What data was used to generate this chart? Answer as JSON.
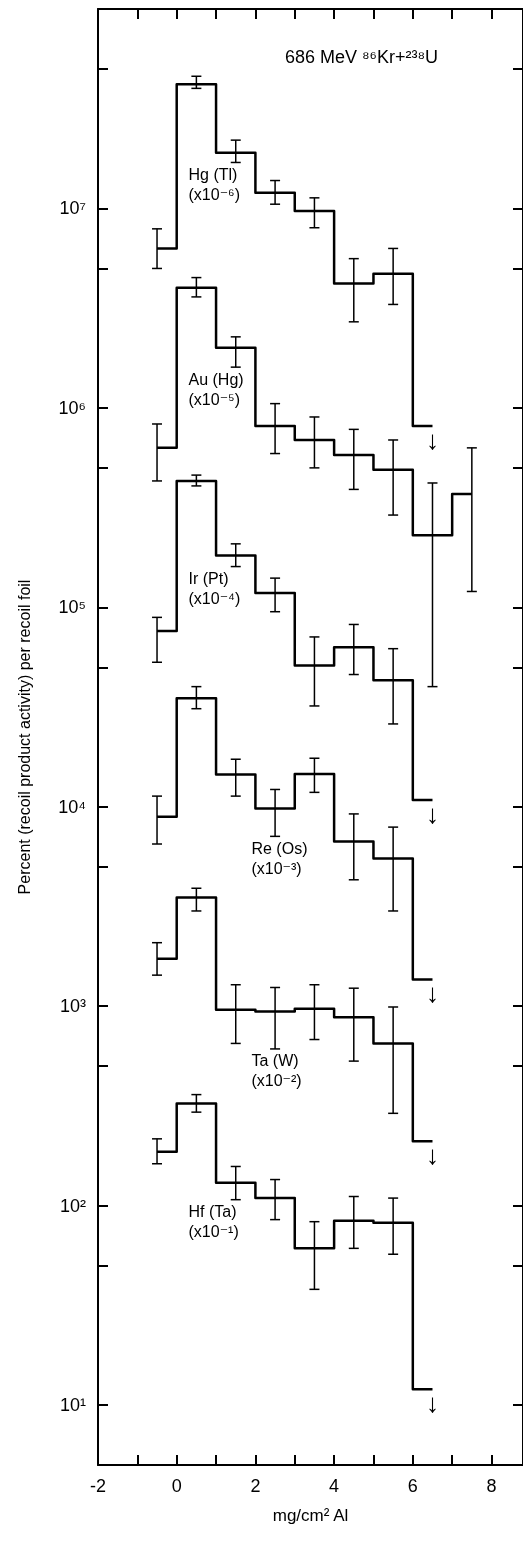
{
  "chart_data": {
    "type": "step",
    "title": "686 MeV ⁸⁶Kr+²³⁸U",
    "xlabel": "mg/cm² Al",
    "ylabel": "Percent (recoil product activity) per recoil foil",
    "x": [
      -0.5,
      0.5,
      1.5,
      2.5,
      3.5,
      4.5,
      5.5,
      6.5
    ],
    "series": [
      {
        "name": "Hg (Tl)\n(x10⁻⁶)",
        "color": "#000000",
        "values": [
          6300000,
          42000000,
          19000000,
          12000000,
          9700000,
          4200000,
          4700000,
          810000
        ],
        "errors": [
          [
            5000000,
            7900000
          ],
          [
            40000000,
            46000000
          ],
          [
            17000000,
            22000000
          ],
          [
            10500000,
            13800000
          ],
          [
            8000000,
            11300000
          ],
          [
            2700000,
            5600000
          ],
          [
            3300000,
            6300000
          ],
          null
        ]
      },
      {
        "name": "Au (Hg)\n(x10⁻⁵)",
        "color": "#000000",
        "x": [
          -0.5,
          0.5,
          1.5,
          2.5,
          3.5,
          4.5,
          5.5,
          6.5,
          7.5
        ],
        "values": [
          630000,
          4000000,
          2000000,
          810000,
          690000,
          580000,
          490000,
          230000,
          370000
        ],
        "errors": [
          [
            430000,
            830000
          ],
          [
            3600000,
            4500000
          ],
          [
            1600000,
            2270000
          ],
          [
            590000,
            1050000
          ],
          [
            500000,
            900000
          ],
          [
            390000,
            780000
          ],
          [
            290000,
            690000
          ],
          [
            40000,
            420000
          ],
          [
            120000,
            630000
          ]
        ]
      },
      {
        "name": "Ir (Pt)\n(x10⁻⁴)",
        "color": "#000000",
        "values": [
          76000,
          430000,
          182000,
          118000,
          51000,
          63000,
          43000,
          10800
        ],
        "errors": [
          [
            53000,
            89000
          ],
          [
            406000,
            460000
          ],
          [
            160000,
            208000
          ],
          [
            95000,
            140000
          ],
          [
            32000,
            71000
          ],
          [
            46000,
            82000
          ],
          [
            26000,
            62000
          ],
          null
        ]
      },
      {
        "name": "Re (Os)\n(x10⁻³)",
        "color": "#000000",
        "values": [
          8900,
          35000,
          14500,
          9800,
          14600,
          6700,
          5500,
          1360
        ],
        "errors": [
          [
            6500,
            11300
          ],
          [
            31000,
            40000
          ],
          [
            11300,
            17300
          ],
          [
            7100,
            12200
          ],
          [
            11800,
            17500
          ],
          [
            4300,
            9200
          ],
          [
            3000,
            7900
          ],
          null
        ]
      },
      {
        "name": "Ta (W)\n(x10⁻²)",
        "color": "#000000",
        "values": [
          1730,
          3500,
          960,
          940,
          970,
          880,
          650,
          210
        ],
        "errors": [
          [
            1430,
            2080
          ],
          [
            3000,
            3900
          ],
          [
            650,
            1280
          ],
          [
            610,
            1240
          ],
          [
            680,
            1280
          ],
          [
            530,
            1230
          ],
          [
            290,
            990
          ],
          null
        ]
      },
      {
        "name": "Hf (Ta)\n(x10⁻¹)",
        "color": "#000000",
        "values": [
          186,
          325,
          130,
          109,
          61,
          84,
          82,
          12
        ],
        "errors": [
          [
            162,
            216
          ],
          [
            294,
            360
          ],
          [
            107,
            157
          ],
          [
            85,
            135
          ],
          [
            38,
            83
          ],
          [
            61,
            111
          ],
          [
            57,
            109
          ],
          null
        ]
      }
    ],
    "xlim": [
      -2,
      8.8
    ],
    "xticks": [
      -2,
      {
        "value": -1,
        "label": null
      },
      0,
      {
        "value": 1,
        "label": null
      },
      2,
      {
        "value": 3,
        "label": null
      },
      4,
      {
        "value": 5,
        "label": null
      },
      6,
      {
        "value": 7,
        "label": null
      },
      8
    ],
    "ylim": [
      5,
      100000000
    ],
    "log": true,
    "yticks": [
      {
        "value": 5,
        "label": null
      },
      {
        "value": 10,
        "label": "10¹"
      },
      {
        "value": 50,
        "label": null
      },
      {
        "value": 100,
        "label": "10²"
      },
      {
        "value": 500,
        "label": null
      },
      {
        "value": 1000,
        "label": "10³"
      },
      {
        "value": 5000,
        "label": null
      },
      {
        "value": 10000,
        "label": "10⁴"
      },
      {
        "value": 50000,
        "label": null
      },
      {
        "value": 100000,
        "label": "10⁵"
      },
      {
        "value": 500000,
        "label": null
      },
      {
        "value": 1000000,
        "label": "10⁶"
      },
      {
        "value": 5000000,
        "label": null
      },
      {
        "value": 10000000,
        "label": "10⁷"
      },
      {
        "value": 50000000,
        "label": null
      }
    ],
    "annotations": [
      "↓",
      "↓",
      "↓",
      "↓",
      "↓"
    ],
    "grid": false,
    "legend": false,
    "marker": "none",
    "line_style": "solid"
  }
}
